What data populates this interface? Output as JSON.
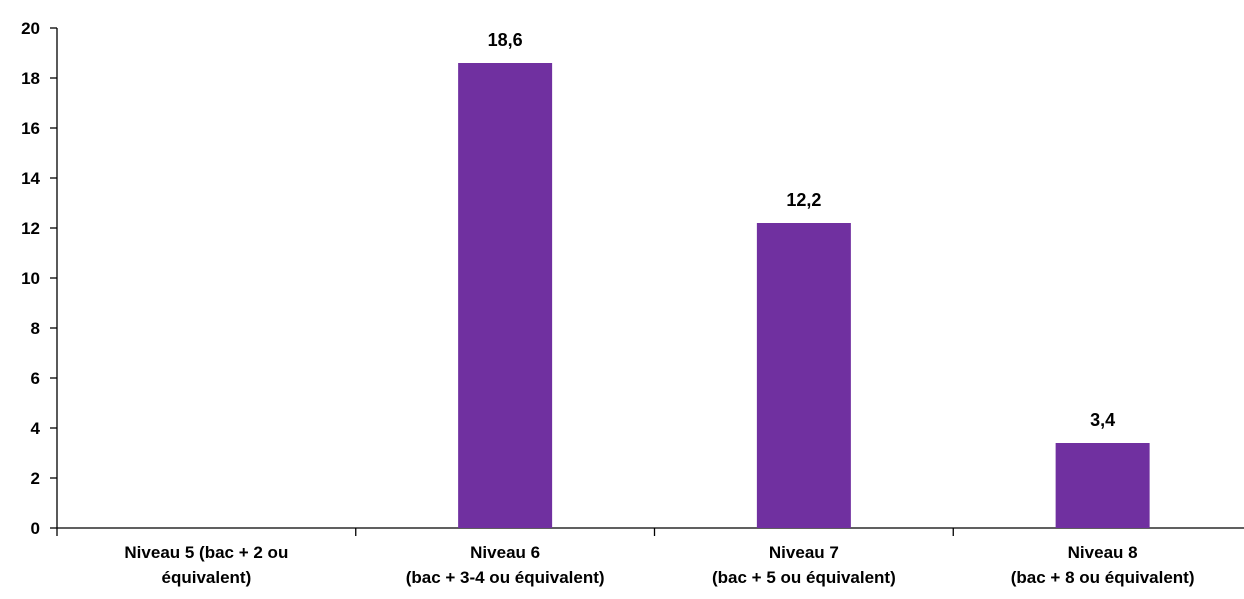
{
  "chart_data": {
    "type": "bar",
    "categories": [
      [
        "Niveau 5 (bac + 2 ou",
        "équivalent)"
      ],
      [
        "Niveau 6",
        "(bac + 3-4 ou équivalent)"
      ],
      [
        "Niveau 7",
        "(bac + 5 ou équivalent)"
      ],
      [
        "Niveau 8",
        "(bac + 8 ou équivalent)"
      ]
    ],
    "values": [
      null,
      18.6,
      12.2,
      3.4
    ],
    "data_labels": [
      "",
      "18,6",
      "12,2",
      "3,4"
    ],
    "ylim": [
      0,
      20
    ],
    "yticks": [
      0,
      2,
      4,
      6,
      8,
      10,
      12,
      14,
      16,
      18,
      20
    ],
    "ytick_labels": [
      "0",
      "2",
      "4",
      "6",
      "8",
      "10",
      "12",
      "14",
      "16",
      "18",
      "20"
    ],
    "title": "",
    "xlabel": "",
    "ylabel": "",
    "grid": false,
    "bar_color": "#7030A0"
  }
}
